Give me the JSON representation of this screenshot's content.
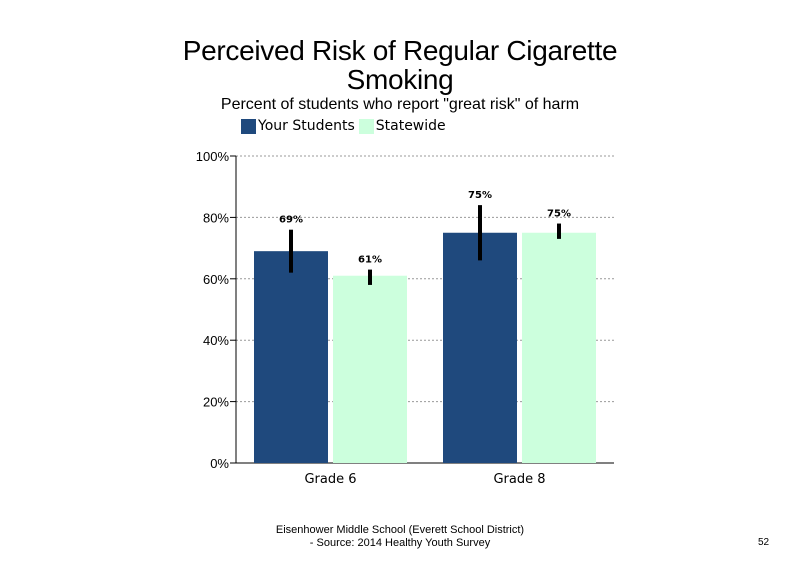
{
  "chart_data": {
    "type": "bar",
    "title": "Perceived Risk of Regular Cigarette Smoking",
    "subtitle": "Percent of students who report \"great risk\" of harm",
    "categories": [
      "Grade 6",
      "Grade 8"
    ],
    "series": [
      {
        "name": "Your Students",
        "color": "#1f497d",
        "values": [
          69,
          75
        ],
        "labels": [
          "69%",
          "75%"
        ],
        "error": [
          [
            62,
            76
          ],
          [
            66,
            84
          ]
        ]
      },
      {
        "name": "Statewide",
        "color": "#ccffdd",
        "values": [
          61,
          75
        ],
        "labels": [
          "61%",
          "75%"
        ],
        "error": [
          [
            58,
            63
          ],
          [
            73,
            78
          ]
        ]
      }
    ],
    "ylim": [
      0,
      100
    ],
    "yticks": [
      0,
      20,
      40,
      60,
      80,
      100
    ],
    "ytick_labels": [
      "0%",
      "20%",
      "40%",
      "60%",
      "80%",
      "100%"
    ],
    "grid": true,
    "legend_position": "top-left"
  },
  "footer": {
    "line1": "Eisenhower Middle School (Everett School District)",
    "line2": "- Source: 2014 Healthy  Youth Survey"
  },
  "page_number": "52"
}
